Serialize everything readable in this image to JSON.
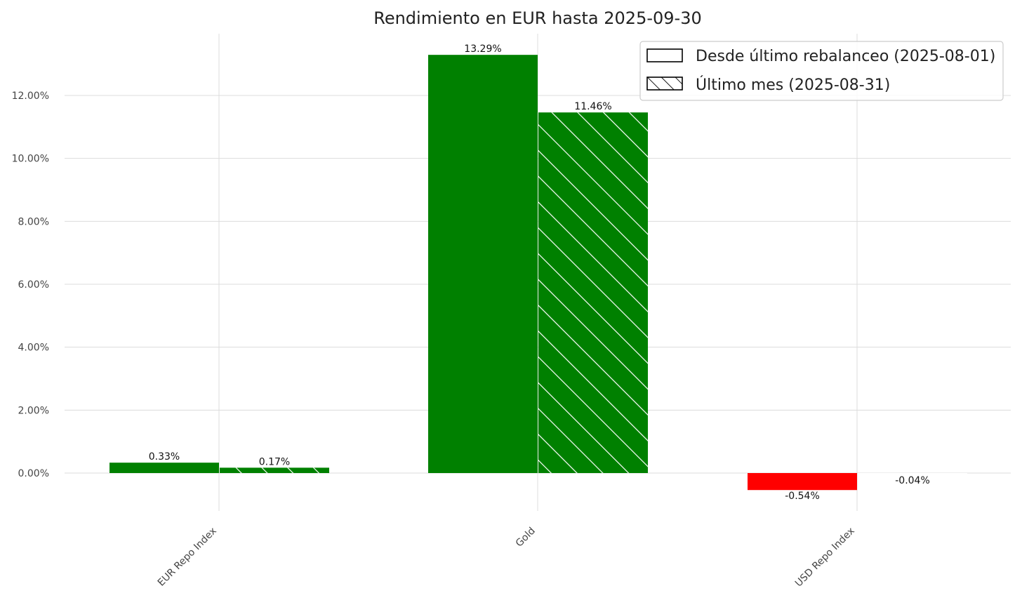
{
  "chart_data": {
    "type": "bar",
    "title": "Rendimiento en EUR hasta 2025-09-30",
    "categories": [
      "EUR Repo Index",
      "Gold",
      "USD Repo Index"
    ],
    "series": [
      {
        "name": "Desde último rebalanceo (2025-08-01)",
        "values": [
          0.33,
          13.29,
          -0.54
        ],
        "hatch": "none"
      },
      {
        "name": "Último mes (2025-08-31)",
        "values": [
          0.17,
          11.46,
          -0.04
        ],
        "hatch": "diagonal"
      }
    ],
    "data_labels": [
      [
        "0.33%",
        "13.29%",
        "-0.54%"
      ],
      [
        "0.17%",
        "11.46%",
        "-0.04%"
      ]
    ],
    "value_unit": "%",
    "yticks": [
      0,
      2,
      4,
      6,
      8,
      10,
      12
    ],
    "ytick_labels": [
      "0.00%",
      "2.00%",
      "4.00%",
      "6.00%",
      "8.00%",
      "10.00%",
      "12.00%"
    ],
    "ylim": [
      -1.2,
      14.0
    ],
    "grid": true,
    "legend_position": "top-right",
    "xlabel": "",
    "ylabel": "",
    "colors": {
      "positive": "#008000",
      "negative": "#ff0000",
      "hatch": "#ffffff",
      "grid": "#dcdcdc"
    }
  }
}
